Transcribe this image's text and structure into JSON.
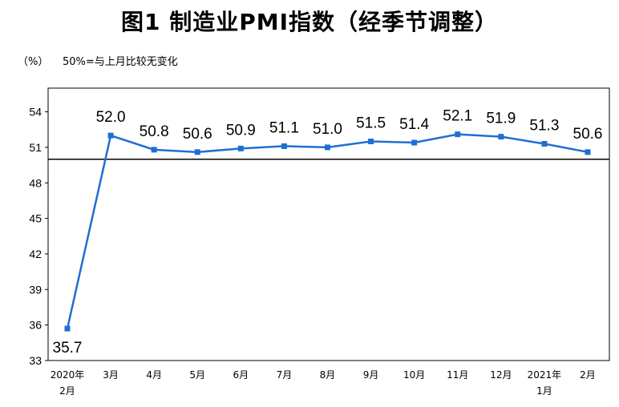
{
  "chart_data": {
    "type": "line",
    "title": "图1  制造业PMI指数（经季节调整）",
    "unit_label": "（%）",
    "note": "50%=与上月比较无变化",
    "categories": [
      [
        "2020年",
        "2月"
      ],
      [
        "3月"
      ],
      [
        "4月"
      ],
      [
        "5月"
      ],
      [
        "6月"
      ],
      [
        "7月"
      ],
      [
        "8月"
      ],
      [
        "9月"
      ],
      [
        "10月"
      ],
      [
        "11月"
      ],
      [
        "12月"
      ],
      [
        "2021年",
        "1月"
      ],
      [
        "2月"
      ]
    ],
    "series": [
      {
        "values": [
          35.7,
          52.0,
          50.8,
          50.6,
          50.9,
          51.1,
          51.0,
          51.5,
          51.4,
          52.1,
          51.9,
          51.3,
          50.6
        ],
        "labels": [
          "35.7",
          "52.0",
          "50.8",
          "50.6",
          "50.9",
          "51.1",
          "51.0",
          "51.5",
          "51.4",
          "52.1",
          "51.9",
          "51.3",
          "50.6"
        ],
        "color": "#1f6fd1"
      }
    ],
    "ylim": [
      33,
      56
    ],
    "yticks": [
      "33",
      "36",
      "39",
      "42",
      "45",
      "48",
      "51",
      "54"
    ],
    "reference_line": 50,
    "grid": false,
    "legend": "none"
  }
}
